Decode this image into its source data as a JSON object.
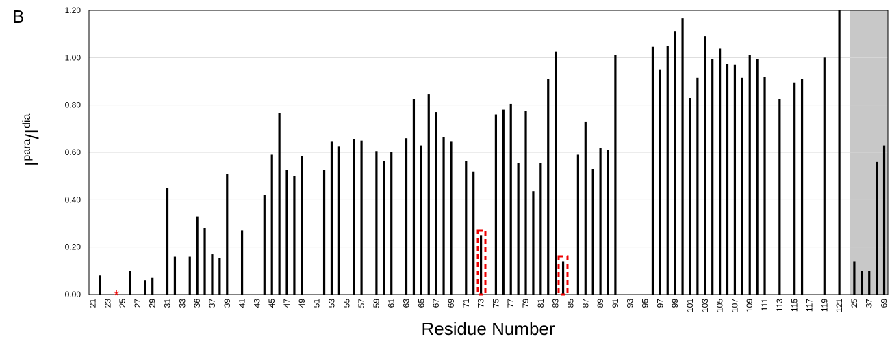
{
  "chart_data": {
    "type": "bar",
    "panel_label": "B",
    "xlabel": "Residue Number",
    "ylabel": {
      "base1": "I",
      "sup1": "para",
      "base2": "/I",
      "sup2": "dia"
    },
    "annotation": "*",
    "categories": [
      "21",
      null,
      "23",
      null,
      "25",
      null,
      "27",
      null,
      "29",
      null,
      "31",
      null,
      "33",
      null,
      "36",
      null,
      "37",
      null,
      "39",
      null,
      "41",
      null,
      "43",
      null,
      "45",
      null,
      "47",
      null,
      "49",
      null,
      "51",
      null,
      "53",
      null,
      "55",
      null,
      "57",
      null,
      "59",
      null,
      "61",
      null,
      "63",
      null,
      "65",
      null,
      "67",
      null,
      "69",
      null,
      "71",
      null,
      "73",
      null,
      "75",
      null,
      "77",
      null,
      "79",
      null,
      "81",
      null,
      "83",
      null,
      "85",
      null,
      "87",
      null,
      "89",
      null,
      "91",
      null,
      "93",
      null,
      "95",
      null,
      "97",
      null,
      "99",
      null,
      "101",
      null,
      "103",
      null,
      "105",
      null,
      "107",
      null,
      "109",
      null,
      "111",
      null,
      "113",
      null,
      "115",
      null,
      "117",
      null,
      "119",
      null,
      "121",
      null,
      "25",
      null,
      "37",
      null,
      "69"
    ],
    "values": [
      null,
      0.08,
      null,
      null,
      null,
      0.1,
      null,
      0.06,
      0.07,
      null,
      0.45,
      0.16,
      null,
      0.16,
      0.33,
      0.28,
      0.17,
      0.155,
      0.51,
      null,
      0.27,
      null,
      null,
      0.42,
      0.59,
      0.765,
      0.525,
      0.5,
      0.585,
      null,
      null,
      0.525,
      0.645,
      0.625,
      null,
      0.655,
      0.65,
      null,
      0.605,
      0.565,
      0.6,
      null,
      0.66,
      0.825,
      0.63,
      0.845,
      0.77,
      0.665,
      0.645,
      null,
      0.565,
      0.52,
      0.25,
      null,
      0.76,
      0.78,
      0.805,
      0.555,
      0.775,
      0.435,
      0.555,
      0.91,
      1.025,
      0.14,
      null,
      0.59,
      0.73,
      0.53,
      0.62,
      0.61,
      1.01,
      null,
      null,
      null,
      null,
      1.045,
      0.95,
      1.05,
      1.11,
      1.165,
      0.83,
      0.915,
      1.09,
      0.995,
      1.04,
      0.975,
      0.97,
      0.915,
      1.01,
      0.995,
      0.92,
      null,
      0.825,
      null,
      0.895,
      0.91,
      null,
      null,
      1.0,
      null,
      1.2,
      null,
      0.14,
      0.1,
      0.1,
      0.56,
      0.63
    ],
    "color": "#000000",
    "ylim": [
      0,
      1.2
    ],
    "yticks": [
      {
        "value": 0,
        "label": "0.00"
      },
      {
        "value": 0.2,
        "label": "0.20"
      },
      {
        "value": 0.4,
        "label": "0.40"
      },
      {
        "value": 0.6,
        "label": "0.60"
      },
      {
        "value": 0.8,
        "label": "0.80"
      },
      {
        "value": 1.0,
        "label": "1.00"
      },
      {
        "value": 1.2,
        "label": "1.20"
      }
    ],
    "grid": true
  }
}
